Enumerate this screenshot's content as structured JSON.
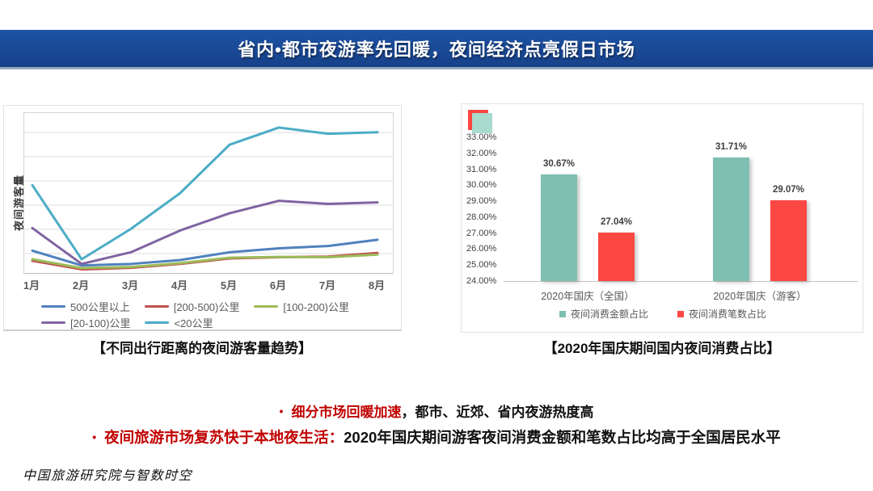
{
  "header": {
    "title": "省内•都市夜游率先回暖，夜间经济点亮假日市场"
  },
  "captions": {
    "left": "【不同出行距离的夜间游客量趋势】",
    "right": "【2020年国庆期间国内夜间消费占比】"
  },
  "bullets": [
    {
      "red": "细分市场回暖加速",
      "black": "，都市、近郊、省内夜游热度高"
    },
    {
      "red": "夜间旅游市场复苏快于本地夜生活：",
      "black": "2020年国庆期间游客夜间消费金额和笔数占比均高于全国居民水平"
    }
  ],
  "footer": {
    "text": "中国旅游研究院与智数时空"
  },
  "colors": {
    "banner_blue": "#1A4A99",
    "accent_red_text": "#C00000",
    "teal_bar": "#7FBFB2",
    "red_bar": "#FB4843"
  },
  "chart_data": [
    {
      "type": "line",
      "title": "不同出行距离的夜间游客量趋势",
      "ylabel": "夜间游客量",
      "categories": [
        "1月",
        "2月",
        "3月",
        "4月",
        "5月",
        "6月",
        "7月",
        "8月"
      ],
      "ylim": [
        0,
        100
      ],
      "grid": true,
      "legend_position": "bottom",
      "series": [
        {
          "name": "500公里以上",
          "color": "#4F81BD",
          "values": [
            13,
            3.5,
            4.5,
            7,
            12,
            14.5,
            16,
            20
          ]
        },
        {
          "name": "[200-500)公里",
          "color": "#C0504D",
          "values": [
            6.5,
            1,
            2,
            4.5,
            8,
            8.8,
            9.2,
            11.5
          ]
        },
        {
          "name": "[100-200)公里",
          "color": "#9BBB59",
          "values": [
            7.5,
            1.8,
            2.5,
            5,
            8.5,
            9,
            8.8,
            10.5
          ]
        },
        {
          "name": "[20-100)公里",
          "color": "#8064A2",
          "values": [
            27.5,
            4.5,
            12,
            26,
            37,
            45,
            43,
            44
          ]
        },
        {
          "name": "<20公里",
          "color": "#4BACC6",
          "values": [
            55,
            7.5,
            27,
            50,
            81,
            92,
            88,
            89
          ]
        }
      ]
    },
    {
      "type": "bar",
      "title": "2020年国庆期间国内夜间消费占比",
      "categories": [
        "2020年国庆（全国）",
        "2020年国庆（游客）"
      ],
      "ylim": [
        24,
        33
      ],
      "yticks": [
        "33.00%",
        "32.00%",
        "31.00%",
        "30.00%",
        "29.00%",
        "28.00%",
        "27.00%",
        "26.00%",
        "25.00%",
        "24.00%"
      ],
      "grid": false,
      "legend_position": "bottom",
      "series": [
        {
          "name": "夜间消费金额占比",
          "color": "#7FBFB2",
          "values": [
            30.67,
            31.71
          ],
          "labels": [
            "30.67%",
            "31.71%"
          ]
        },
        {
          "name": "夜间消费笔数占比",
          "color": "#FB4843",
          "values": [
            27.04,
            29.07
          ],
          "labels": [
            "27.04%",
            "29.07%"
          ]
        }
      ]
    }
  ]
}
